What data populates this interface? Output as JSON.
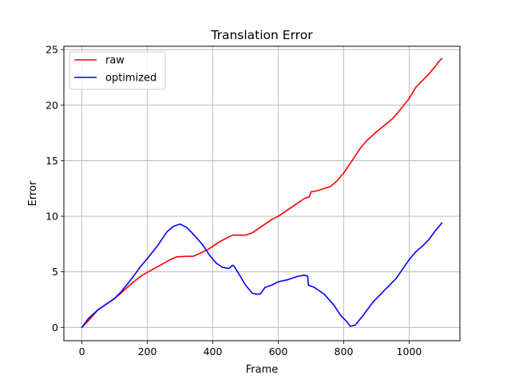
{
  "chart_data": {
    "type": "line",
    "title": "Translation Error",
    "xlabel": "Frame",
    "ylabel": "Error",
    "xlim": [
      -55,
      1155
    ],
    "ylim": [
      -1.2,
      25.3
    ],
    "xticks": [
      0,
      200,
      400,
      600,
      800,
      1000
    ],
    "yticks": [
      0,
      5,
      10,
      15,
      20,
      25
    ],
    "grid": true,
    "legend_position": "upper-left",
    "series": [
      {
        "name": "raw",
        "color": "#ff0000",
        "x": [
          0,
          20,
          50,
          80,
          100,
          120,
          150,
          180,
          200,
          240,
          270,
          290,
          320,
          340,
          360,
          390,
          420,
          440,
          460,
          500,
          520,
          550,
          580,
          600,
          640,
          680,
          695,
          700,
          720,
          760,
          780,
          800,
          830,
          850,
          870,
          900,
          950,
          970,
          1000,
          1020,
          1040,
          1060,
          1080,
          1090,
          1100
        ],
        "values": [
          0,
          0.6,
          1.6,
          2.2,
          2.6,
          3.1,
          3.9,
          4.6,
          4.95,
          5.6,
          6.1,
          6.35,
          6.4,
          6.4,
          6.65,
          7.1,
          7.7,
          8.0,
          8.3,
          8.3,
          8.5,
          9.1,
          9.7,
          10.0,
          10.8,
          11.6,
          11.75,
          12.2,
          12.3,
          12.7,
          13.2,
          13.9,
          15.2,
          16.1,
          16.8,
          17.6,
          18.8,
          19.5,
          20.6,
          21.6,
          22.2,
          22.8,
          23.5,
          23.9,
          24.2
        ]
      },
      {
        "name": "optimized",
        "color": "#0000ff",
        "x": [
          0,
          20,
          50,
          80,
          100,
          120,
          150,
          180,
          200,
          230,
          260,
          280,
          300,
          320,
          340,
          370,
          390,
          410,
          430,
          450,
          460,
          465,
          480,
          500,
          520,
          530,
          545,
          560,
          580,
          600,
          630,
          660,
          680,
          690,
          692,
          710,
          740,
          770,
          790,
          810,
          820,
          835,
          860,
          890,
          920,
          960,
          1000,
          1020,
          1040,
          1060,
          1080,
          1100
        ],
        "values": [
          0,
          0.8,
          1.6,
          2.2,
          2.6,
          3.2,
          4.3,
          5.5,
          6.2,
          7.3,
          8.6,
          9.1,
          9.3,
          9.0,
          8.4,
          7.4,
          6.5,
          5.8,
          5.4,
          5.3,
          5.6,
          5.5,
          4.8,
          3.8,
          3.1,
          3.0,
          3.0,
          3.6,
          3.8,
          4.1,
          4.3,
          4.6,
          4.7,
          4.6,
          3.8,
          3.6,
          3.0,
          2.0,
          1.1,
          0.5,
          0.1,
          0.2,
          1.1,
          2.3,
          3.2,
          4.4,
          6.1,
          6.8,
          7.3,
          7.9,
          8.7,
          9.4
        ]
      }
    ]
  }
}
